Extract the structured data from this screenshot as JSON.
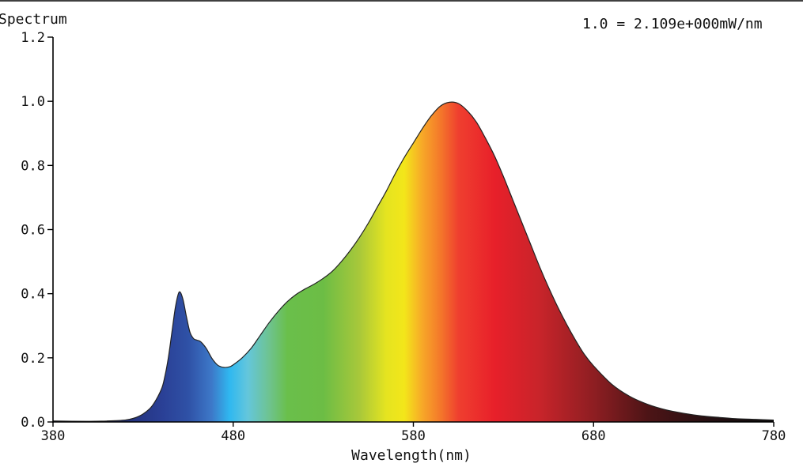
{
  "chart_data": {
    "type": "area",
    "title": "Spectrum",
    "scale_note": "1.0 = 2.109e+000mW/nm",
    "xlabel": "Wavelength(nm)",
    "ylabel": "",
    "xlim": [
      380,
      780
    ],
    "ylim": [
      0.0,
      1.2
    ],
    "x_ticks": [
      {
        "value": 380,
        "label": "380"
      },
      {
        "value": 480,
        "label": "480"
      },
      {
        "value": 580,
        "label": "580"
      },
      {
        "value": 680,
        "label": "680"
      },
      {
        "value": 780,
        "label": "780"
      }
    ],
    "y_ticks": [
      {
        "value": 0.0,
        "label": "0.0"
      },
      {
        "value": 0.2,
        "label": "0.2"
      },
      {
        "value": 0.4,
        "label": "0.4"
      },
      {
        "value": 0.6,
        "label": "0.6"
      },
      {
        "value": 0.8,
        "label": "0.8"
      },
      {
        "value": 1.0,
        "label": "1.0"
      },
      {
        "value": 1.2,
        "label": "1.2"
      }
    ],
    "grid": false,
    "fill": "spectral-color-gradient",
    "series": [
      {
        "x": [
          380,
          400,
          410,
          420,
          425,
          430,
          435,
          440,
          442,
          444,
          446,
          448,
          450,
          452,
          454,
          456,
          458,
          460,
          462,
          465,
          468,
          470,
          472,
          475,
          478,
          480,
          485,
          490,
          495,
          500,
          505,
          510,
          515,
          520,
          525,
          530,
          535,
          540,
          545,
          550,
          555,
          560,
          565,
          570,
          575,
          580,
          585,
          590,
          595,
          600,
          605,
          610,
          615,
          620,
          625,
          630,
          635,
          640,
          645,
          650,
          655,
          660,
          665,
          670,
          675,
          680,
          690,
          700,
          710,
          720,
          730,
          740,
          750,
          760,
          770,
          780
        ],
        "y": [
          0.003,
          0.002,
          0.003,
          0.006,
          0.012,
          0.025,
          0.05,
          0.1,
          0.14,
          0.2,
          0.28,
          0.36,
          0.405,
          0.385,
          0.33,
          0.28,
          0.26,
          0.255,
          0.25,
          0.23,
          0.2,
          0.185,
          0.175,
          0.17,
          0.172,
          0.178,
          0.2,
          0.23,
          0.27,
          0.31,
          0.345,
          0.375,
          0.398,
          0.415,
          0.43,
          0.448,
          0.47,
          0.5,
          0.535,
          0.575,
          0.62,
          0.67,
          0.72,
          0.775,
          0.825,
          0.87,
          0.915,
          0.955,
          0.985,
          0.997,
          0.993,
          0.97,
          0.935,
          0.885,
          0.83,
          0.765,
          0.695,
          0.625,
          0.555,
          0.485,
          0.42,
          0.36,
          0.305,
          0.255,
          0.21,
          0.175,
          0.118,
          0.08,
          0.055,
          0.038,
          0.027,
          0.019,
          0.014,
          0.01,
          0.008,
          0.006
        ]
      }
    ]
  }
}
